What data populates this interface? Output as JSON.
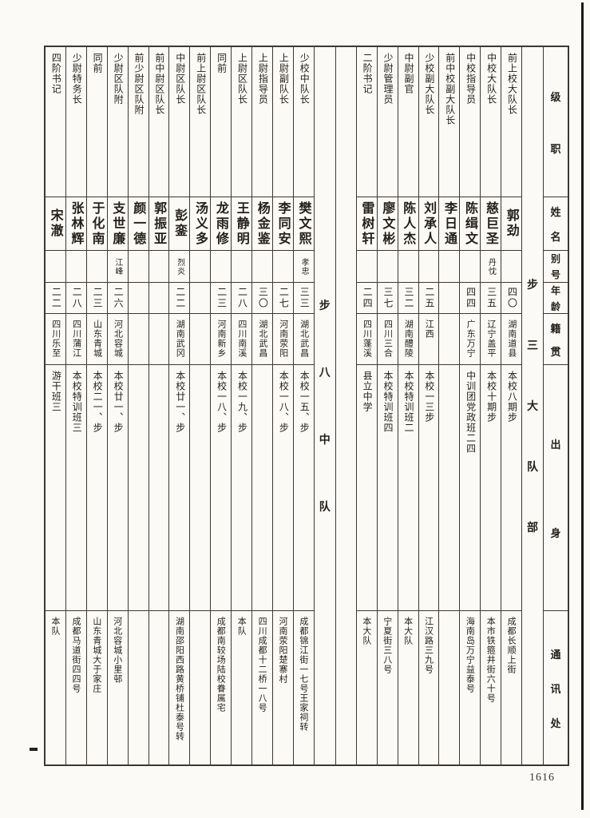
{
  "page_number": "1616",
  "headers": {
    "rank": "级职",
    "name": "姓名",
    "alias": "别号",
    "age": "年龄",
    "native": "籍贯",
    "origin": "出身",
    "address": "通讯处"
  },
  "units": [
    {
      "label": "步三大队部",
      "members": [
        {
          "name": "郭劲",
          "rank": "前上校大队长",
          "alias": "",
          "age": "四〇",
          "native": "湖南道县",
          "origin": "本校八期步",
          "address": "成都长顺上街"
        },
        {
          "name": "慈巨圣",
          "rank": "中校大队长",
          "alias": "丹忱",
          "age": "三五",
          "native": "辽宁盖平",
          "origin": "本校十期步",
          "address": "本市铁箍井街六十号"
        },
        {
          "name": "陈缉文",
          "rank": "中校指导员",
          "alias": "",
          "age": "四四",
          "native": "广东万宁",
          "origin": "中训团党政班二四",
          "address": "海南岛万宁益泰号"
        },
        {
          "name": "李日通",
          "rank": "前中校副大队长",
          "alias": "",
          "age": "",
          "native": "",
          "origin": "",
          "address": ""
        },
        {
          "name": "刘承人",
          "rank": "少校副大队长",
          "alias": "",
          "age": "二五",
          "native": "江西",
          "origin": "本校一三步",
          "address": "江汉路三九号"
        },
        {
          "name": "陈人杰",
          "rank": "中尉副官",
          "alias": "",
          "age": "三二",
          "native": "湖南醴陵",
          "origin": "本校特训班二",
          "address": "本大队"
        },
        {
          "name": "廖文彬",
          "rank": "少尉管理员",
          "alias": "",
          "age": "三七",
          "native": "四川三合",
          "origin": "本校特训班四",
          "address": "宁夏街三八号"
        },
        {
          "name": "雷树轩",
          "rank": "二阶书记",
          "alias": "",
          "age": "二四",
          "native": "四川蓬溪",
          "origin": "县立中学",
          "address": "本大队"
        }
      ]
    },
    {
      "label": "步八中队",
      "members": [
        {
          "name": "樊文熙",
          "rank": "少校中队长",
          "alias": "孝忠",
          "age": "三三",
          "native": "湖北武昌",
          "origin": "本校一五、步",
          "address": "成都锦江街一七号王家祠转"
        },
        {
          "name": "李同安",
          "rank": "上尉副队长",
          "alias": "",
          "age": "二七",
          "native": "河南荥阳",
          "origin": "本校一八、步",
          "address": "河南荥阳楚寨村"
        },
        {
          "name": "杨金鉴",
          "rank": "上尉指导员",
          "alias": "",
          "age": "三〇",
          "native": "湖北武昌",
          "origin": "",
          "address": "四川成都十二桥一八号"
        },
        {
          "name": "王静明",
          "rank": "上尉区队长",
          "alias": "",
          "age": "二八",
          "native": "四川南溪",
          "origin": "本校一九、步",
          "address": "本队"
        },
        {
          "name": "龙雨修",
          "rank": "同前",
          "alias": "",
          "age": "二三",
          "native": "河南新乡",
          "origin": "本校一八、步",
          "address": "成都南较场陆校眷属宅"
        },
        {
          "name": "汤义多",
          "rank": "前上尉区队长",
          "alias": "",
          "age": "",
          "native": "",
          "origin": "",
          "address": ""
        },
        {
          "name": "彭銮",
          "rank": "中尉区队长",
          "alias": "烈炎",
          "age": "二二",
          "native": "湖南武冈",
          "origin": "本校廿一、步",
          "address": "湖南邵阳西路黄桥铺杜泰号转"
        },
        {
          "name": "郭振亚",
          "rank": "前中尉区队长",
          "alias": "",
          "age": "",
          "native": "",
          "origin": "",
          "address": ""
        },
        {
          "name": "颜一德",
          "rank": "前少尉区队附",
          "alias": "",
          "age": "",
          "native": "",
          "origin": "",
          "address": ""
        },
        {
          "name": "支世廉",
          "rank": "少尉区队附",
          "alias": "江峰",
          "age": "二六",
          "native": "河北容城",
          "origin": "本校廿一、步",
          "address": "河北容城小里邨"
        },
        {
          "name": "于化南",
          "rank": "同前",
          "alias": "",
          "age": "二三",
          "native": "山东青城",
          "origin": "本校二一、步",
          "address": "山东青城大于家庄"
        },
        {
          "name": "张林辉",
          "rank": "少尉特务长",
          "alias": "",
          "age": "二八",
          "native": "四川蒲江",
          "origin": "本校特训班三",
          "address": "成都马道街四四号"
        },
        {
          "name": "宋澈",
          "rank": "四阶书记",
          "alias": "",
          "age": "二二",
          "native": "四川乐至",
          "origin": "游干班三",
          "address": "本队"
        }
      ]
    }
  ]
}
